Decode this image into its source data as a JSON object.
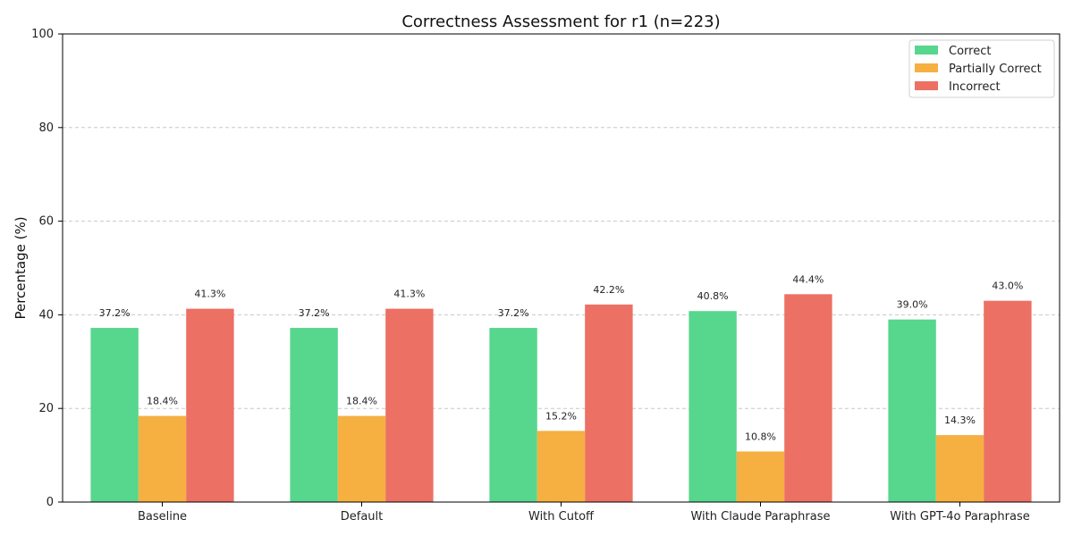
{
  "chart_data": {
    "type": "bar",
    "title": "Correctness Assessment for r1 (n=223)",
    "xlabel": "",
    "ylabel": "Percentage (%)",
    "ylim": [
      0,
      100
    ],
    "yticks": [
      0,
      20,
      40,
      60,
      80,
      100
    ],
    "grid": true,
    "legend_position": "top-right",
    "categories": [
      "Baseline",
      "Default",
      "With Cutoff",
      "With Claude Paraphrase",
      "With GPT-4o Paraphrase"
    ],
    "series": [
      {
        "name": "Correct",
        "color": "#57d68d",
        "values": [
          37.2,
          37.2,
          37.2,
          40.8,
          39.0
        ]
      },
      {
        "name": "Partially Correct",
        "color": "#f5b041",
        "values": [
          18.4,
          18.4,
          15.2,
          10.8,
          14.3
        ]
      },
      {
        "name": "Incorrect",
        "color": "#ec7063",
        "values": [
          41.3,
          41.3,
          42.2,
          44.4,
          43.0
        ]
      }
    ]
  }
}
